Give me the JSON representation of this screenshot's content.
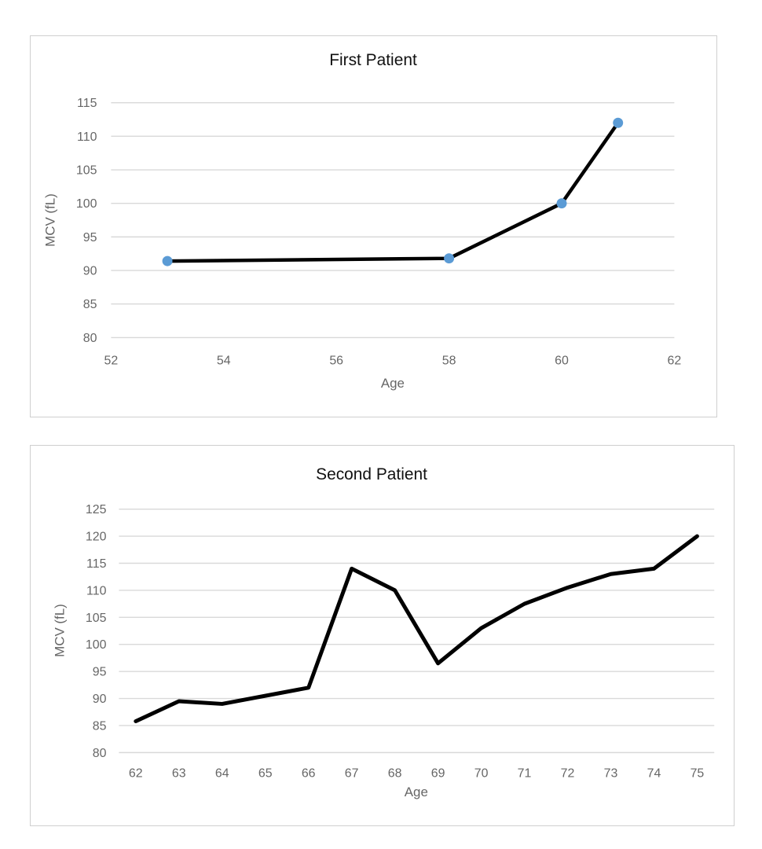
{
  "page": {
    "background": "#ffffff"
  },
  "chart_data": [
    {
      "type": "line",
      "title": "First Patient",
      "xlabel": "Age",
      "ylabel": "MCV (fL)",
      "x": [
        53,
        58,
        60,
        61
      ],
      "y": [
        91.4,
        91.8,
        100,
        112
      ],
      "xticks": [
        52,
        54,
        56,
        58,
        60,
        62
      ],
      "yticks": [
        80,
        85,
        90,
        95,
        100,
        105,
        110,
        115
      ],
      "xlim": [
        52,
        62
      ],
      "ylim": [
        80,
        115
      ],
      "grid": "horizontal-only",
      "legend": "none",
      "has_markers": true,
      "line_color": "#000000",
      "marker_color": "#5B9BD5"
    },
    {
      "type": "line",
      "title": "Second Patient",
      "xlabel": "Age",
      "ylabel": "MCV (fL)",
      "x": [
        62,
        63,
        64,
        65,
        66,
        67,
        68,
        69,
        70,
        71,
        72,
        73,
        74,
        75
      ],
      "y": [
        85.8,
        89.5,
        89,
        90.5,
        92,
        114,
        110,
        96.5,
        103,
        107.5,
        110.5,
        113,
        114,
        120
      ],
      "xticks": [
        62,
        63,
        64,
        65,
        66,
        67,
        68,
        69,
        70,
        71,
        72,
        73,
        74,
        75
      ],
      "yticks": [
        80,
        85,
        90,
        95,
        100,
        105,
        110,
        115,
        120,
        125
      ],
      "ylim": [
        80,
        125
      ],
      "grid": "horizontal-only",
      "legend": "none",
      "has_markers": false,
      "line_color": "#000000"
    }
  ]
}
